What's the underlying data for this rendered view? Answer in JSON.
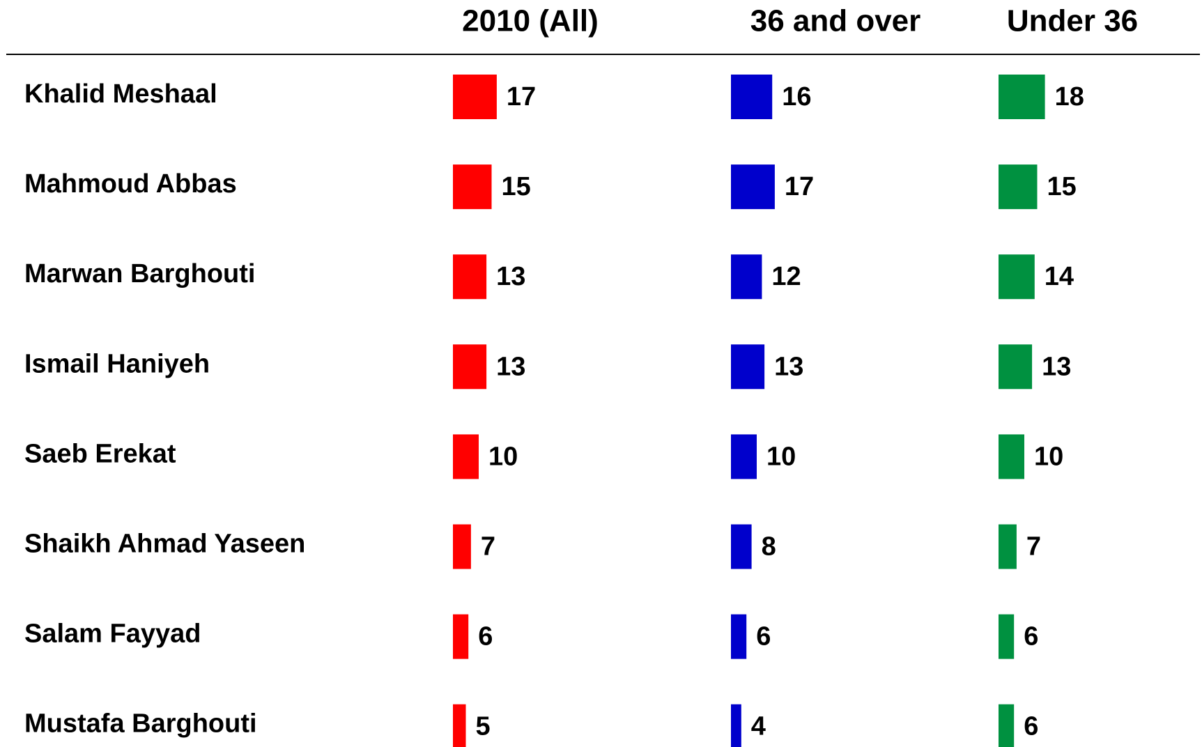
{
  "chart_data": {
    "type": "bar",
    "orientation": "horizontal",
    "categories": [
      "Khalid Meshaal",
      "Mahmoud Abbas",
      "Marwan Barghouti",
      "Ismail Haniyeh",
      "Saeb Erekat",
      "Shaikh Ahmad Yaseen",
      "Salam Fayyad",
      "Mustafa Barghouti"
    ],
    "series": [
      {
        "name": "2010 (All)",
        "color": "#ff0000",
        "values": [
          17,
          15,
          13,
          13,
          10,
          7,
          6,
          5
        ]
      },
      {
        "name": "36 and over",
        "color": "#0000cc",
        "values": [
          16,
          17,
          12,
          13,
          10,
          8,
          6,
          4
        ]
      },
      {
        "name": "Under 36",
        "color": "#009140",
        "values": [
          18,
          15,
          14,
          13,
          10,
          7,
          6,
          6
        ]
      }
    ]
  }
}
